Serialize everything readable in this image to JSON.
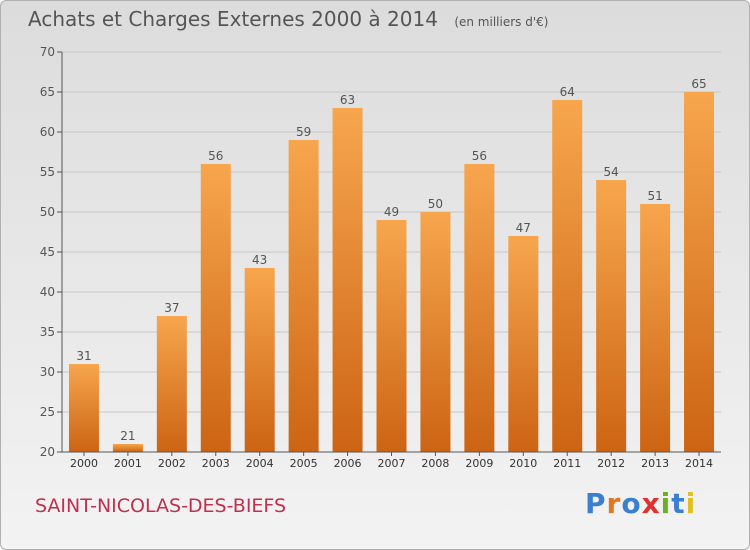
{
  "header": {
    "title": "Achats et Charges Externes 2000 à 2014",
    "subtitle": "(en milliers d'€)"
  },
  "footer": {
    "commune": "SAINT-NICOLAS-DES-BIEFS",
    "logo_text": "Proxiti",
    "logo_colors": [
      "#3a7fd0",
      "#e07820",
      "#3a7fd0",
      "#e03030",
      "#6ab020",
      "#3a7fd0",
      "#e0c020"
    ]
  },
  "colors": {
    "bar_top": "#f7a64e",
    "bar_bottom": "#cc6414",
    "grid": "#c8c8c8",
    "axis": "#555555",
    "commune": "#c03050"
  },
  "chart_data": {
    "type": "bar",
    "categories": [
      "2000",
      "2001",
      "2002",
      "2003",
      "2004",
      "2005",
      "2006",
      "2007",
      "2008",
      "2009",
      "2010",
      "2011",
      "2012",
      "2013",
      "2014"
    ],
    "values": [
      31,
      21,
      37,
      56,
      43,
      59,
      63,
      49,
      50,
      56,
      47,
      64,
      54,
      51,
      65
    ],
    "ylim": [
      20,
      70
    ],
    "yticks": [
      20,
      25,
      30,
      35,
      40,
      45,
      50,
      55,
      60,
      65,
      70
    ],
    "grid": true,
    "data_labels": true
  }
}
